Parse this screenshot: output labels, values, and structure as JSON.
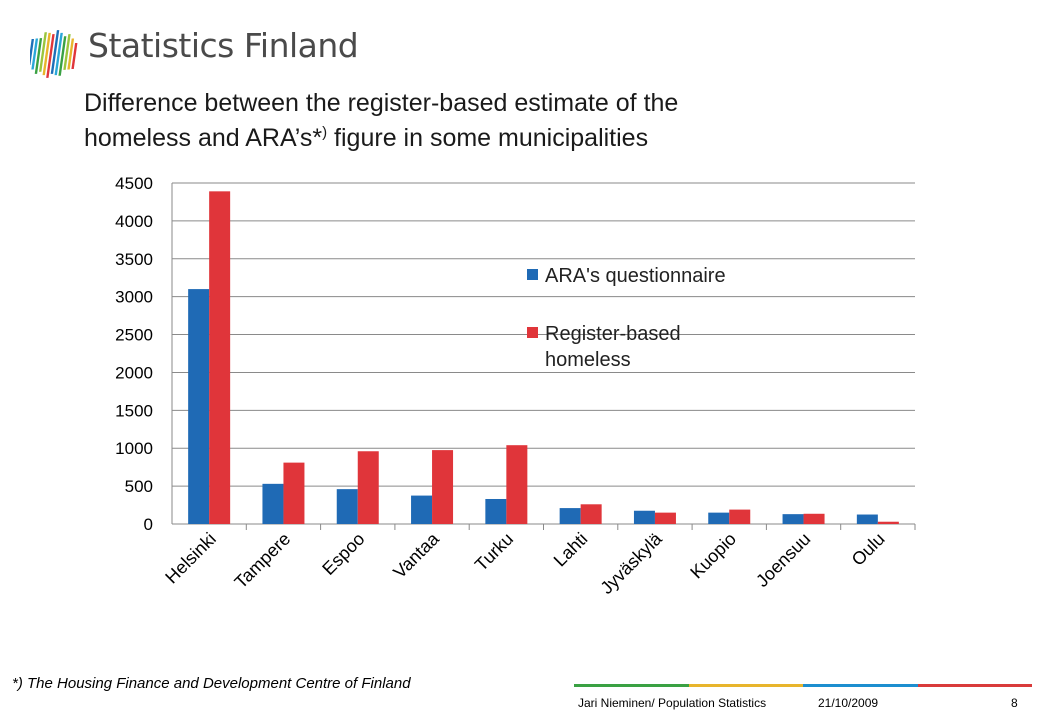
{
  "header": {
    "logo_text": "Statistics Finland",
    "title_line1": "Difference between the register-based estimate of the",
    "title_line2_before": "homeless and ARA’s*",
    "title_sup": ")",
    "title_line2_after": " figure in some municipalities"
  },
  "chart_data": {
    "type": "bar",
    "title": "Difference between the register-based estimate of the homeless and ARA’s*) figure in some municipalities",
    "xlabel": "",
    "ylabel": "",
    "categories": [
      "Helsinki",
      "Tampere",
      "Espoo",
      "Vantaa",
      "Turku",
      "Lahti",
      "Jyväskylä",
      "Kuopio",
      "Joensuu",
      "Oulu"
    ],
    "series": [
      {
        "name": "ARA's questionnaire",
        "color": "#1f6ab5",
        "values": [
          3100,
          530,
          460,
          375,
          330,
          210,
          175,
          150,
          130,
          125
        ]
      },
      {
        "name": "Register-based homeless",
        "color": "#e0353a",
        "values": [
          4390,
          810,
          960,
          975,
          1040,
          260,
          150,
          190,
          135,
          30
        ]
      }
    ],
    "ylim": [
      0,
      4500
    ],
    "yticks": [
      0,
      500,
      1000,
      1500,
      2000,
      2500,
      3000,
      3500,
      4000,
      4500
    ],
    "grid": true,
    "legend_position": "right-center"
  },
  "legend": {
    "items": [
      {
        "lines": [
          "ARA's questionnaire"
        ]
      },
      {
        "lines": [
          "Register-based",
          "homeless"
        ]
      }
    ]
  },
  "footer": {
    "footnote": "*) The Housing Finance and Development Centre of Finland",
    "author": "Jari Nieminen/ Population Statistics",
    "date": "21/10/2009",
    "page": "8",
    "stripe_colors": [
      "#3aa143",
      "#e8b52c",
      "#1d8ecf",
      "#d93b3b"
    ]
  },
  "logo_colors": [
    "#1d6fb8",
    "#2aa7d8",
    "#3aa143",
    "#9bc53d",
    "#e8b52c",
    "#e0353a"
  ]
}
